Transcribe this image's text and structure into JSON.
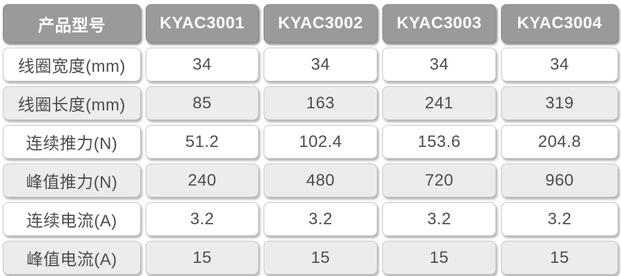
{
  "table": {
    "header": {
      "label": "产品型号",
      "models": [
        "KYAC3001",
        "KYAC3002",
        "KYAC3003",
        "KYAC3004"
      ]
    },
    "rows": [
      {
        "label": "线圈宽度(mm)",
        "values": [
          "34",
          "34",
          "34",
          "34"
        ]
      },
      {
        "label": "线圈长度(mm)",
        "values": [
          "85",
          "163",
          "241",
          "319"
        ]
      },
      {
        "label": "连续推力(N)",
        "values": [
          "51.2",
          "102.4",
          "153.6",
          "204.8"
        ]
      },
      {
        "label": "峰值推力(N)",
        "values": [
          "240",
          "480",
          "720",
          "960"
        ]
      },
      {
        "label": "连续电流(A)",
        "values": [
          "3.2",
          "3.2",
          "3.2",
          "3.2"
        ]
      },
      {
        "label": "峰值电流(A)",
        "values": [
          "15",
          "15",
          "15",
          "15"
        ]
      }
    ],
    "colors": {
      "header_bg": "#9a9a9a",
      "header_text": "#ffffff",
      "row_bg": "#ffffff",
      "row_alt_bg": "#ececec",
      "cell_text": "#4d4d4d",
      "cell_border": "#c6c6c6"
    }
  }
}
